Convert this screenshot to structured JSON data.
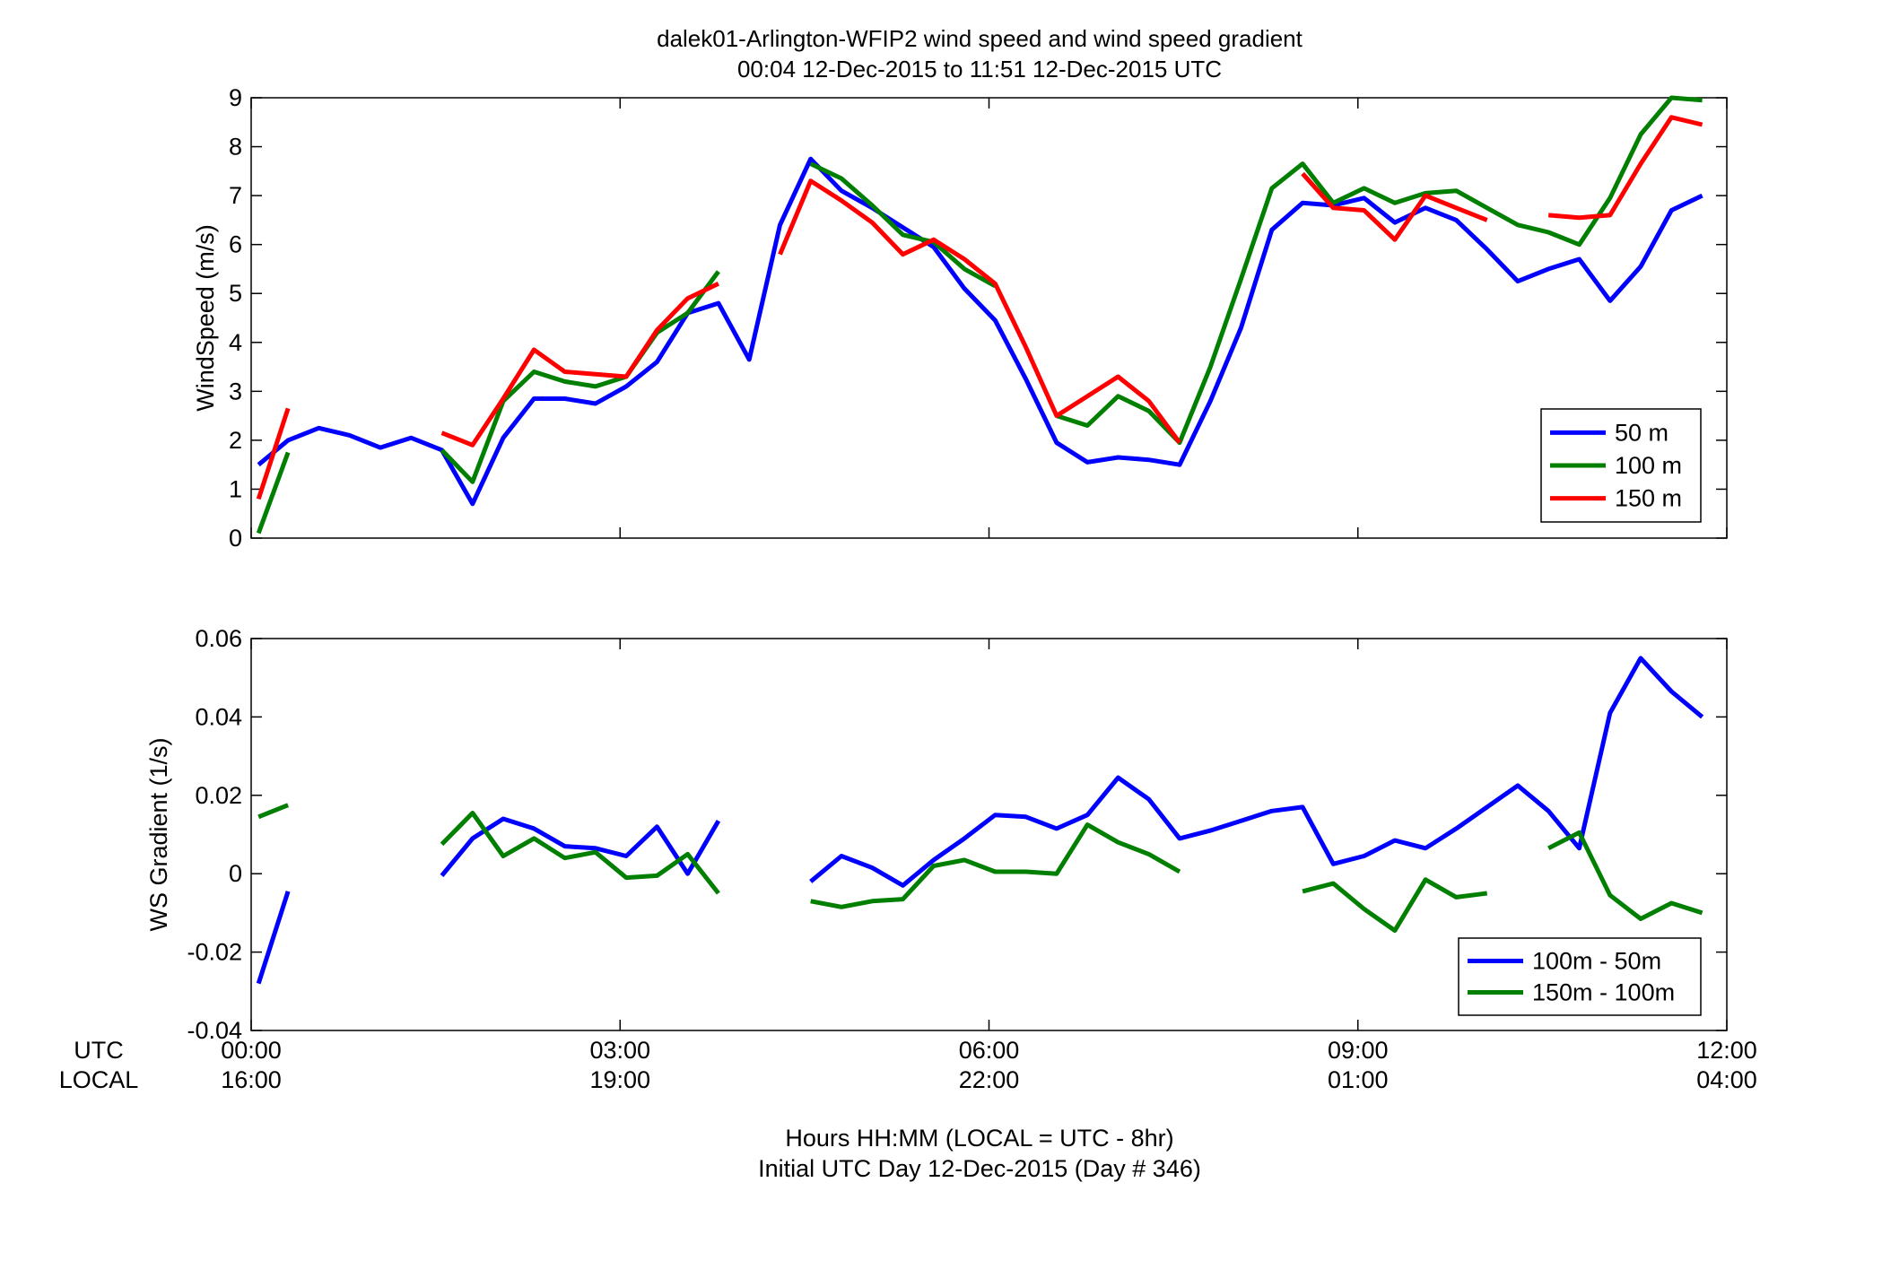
{
  "title_line1": "dalek01-Arlington-WFIP2  wind speed and wind speed gradient",
  "title_line2": "00:04 12-Dec-2015 to 11:51 12-Dec-2015  UTC",
  "row_labels": {
    "utc": "UTC",
    "local": "LOCAL"
  },
  "xticks_utc": [
    "00:00",
    "03:00",
    "06:00",
    "09:00",
    "12:00"
  ],
  "xticks_local": [
    "16:00",
    "19:00",
    "22:00",
    "01:00",
    "04:00"
  ],
  "xlabel_line1": "Hours HH:MM  (LOCAL = UTC - 8hr)",
  "xlabel_line2": "Initial UTC Day 12-Dec-2015 (Day # 346)",
  "colors": {
    "blue": "#0000ff",
    "green": "#007f00",
    "red": "#ff0000"
  },
  "chart_data": [
    {
      "type": "line",
      "name": "wind-speed",
      "title": "",
      "xlabel": "",
      "ylabel": "WindSpeed (m/s)",
      "xlim": [
        0,
        12
      ],
      "ylim": [
        0,
        9
      ],
      "yticks": [
        "0",
        "1",
        "2",
        "3",
        "4",
        "5",
        "6",
        "7",
        "8",
        "9"
      ],
      "grid": false,
      "legend": "bottom-right",
      "series": [
        {
          "name": "50 m",
          "color": "blue",
          "segments": [
            [
              [
                0.06,
                1.5
              ],
              [
                0.3,
                2.0
              ],
              [
                0.55,
                2.25
              ],
              [
                0.8,
                2.1
              ],
              [
                1.05,
                1.85
              ],
              [
                1.3,
                2.05
              ],
              [
                1.55,
                1.8
              ],
              [
                1.8,
                0.7
              ],
              [
                2.05,
                2.05
              ],
              [
                2.3,
                2.85
              ],
              [
                2.55,
                2.85
              ],
              [
                2.8,
                2.75
              ],
              [
                3.05,
                3.1
              ],
              [
                3.3,
                3.6
              ],
              [
                3.55,
                4.6
              ],
              [
                3.8,
                4.8
              ],
              [
                4.05,
                3.65
              ],
              [
                4.3,
                6.4
              ],
              [
                4.55,
                7.75
              ],
              [
                4.8,
                7.1
              ],
              [
                5.05,
                6.75
              ],
              [
                5.3,
                6.35
              ],
              [
                5.55,
                5.95
              ],
              [
                5.8,
                5.1
              ],
              [
                6.05,
                4.45
              ],
              [
                6.3,
                3.25
              ],
              [
                6.55,
                1.95
              ],
              [
                6.8,
                1.55
              ],
              [
                7.05,
                1.65
              ],
              [
                7.3,
                1.6
              ],
              [
                7.55,
                1.5
              ],
              [
                7.8,
                2.8
              ],
              [
                8.05,
                4.3
              ],
              [
                8.3,
                6.3
              ],
              [
                8.55,
                6.85
              ],
              [
                8.8,
                6.8
              ],
              [
                9.05,
                6.95
              ],
              [
                9.3,
                6.45
              ],
              [
                9.55,
                6.75
              ],
              [
                9.8,
                6.5
              ],
              [
                10.05,
                5.9
              ],
              [
                10.3,
                5.25
              ],
              [
                10.55,
                5.5
              ],
              [
                10.8,
                5.7
              ],
              [
                11.05,
                4.85
              ],
              [
                11.3,
                5.55
              ],
              [
                11.55,
                6.7
              ],
              [
                11.8,
                7.0
              ]
            ]
          ]
        },
        {
          "name": "100 m",
          "color": "green",
          "segments": [
            [
              [
                0.06,
                0.1
              ],
              [
                0.3,
                1.75
              ]
            ],
            [
              [
                1.55,
                1.8
              ],
              [
                1.8,
                1.15
              ],
              [
                2.05,
                2.8
              ],
              [
                2.3,
                3.4
              ],
              [
                2.55,
                3.2
              ],
              [
                2.8,
                3.1
              ],
              [
                3.05,
                3.3
              ],
              [
                3.3,
                4.2
              ],
              [
                3.55,
                4.6
              ],
              [
                3.8,
                5.45
              ]
            ],
            [
              [
                4.55,
                7.65
              ],
              [
                4.8,
                7.35
              ],
              [
                5.05,
                6.8
              ],
              [
                5.3,
                6.2
              ],
              [
                5.55,
                6.05
              ],
              [
                5.8,
                5.5
              ],
              [
                6.05,
                5.15
              ]
            ],
            [
              [
                6.55,
                2.5
              ],
              [
                6.8,
                2.3
              ],
              [
                7.05,
                2.9
              ],
              [
                7.3,
                2.6
              ],
              [
                7.55,
                1.95
              ],
              [
                7.8,
                3.5
              ],
              [
                8.05,
                5.3
              ],
              [
                8.3,
                7.15
              ],
              [
                8.55,
                7.65
              ],
              [
                8.8,
                6.85
              ],
              [
                9.05,
                7.15
              ],
              [
                9.3,
                6.85
              ],
              [
                9.55,
                7.05
              ],
              [
                9.8,
                7.1
              ],
              [
                10.05,
                6.75
              ],
              [
                10.3,
                6.4
              ],
              [
                10.55,
                6.25
              ],
              [
                10.8,
                6.0
              ],
              [
                11.05,
                6.95
              ],
              [
                11.3,
                8.25
              ],
              [
                11.55,
                9.0
              ],
              [
                11.8,
                8.95
              ]
            ]
          ]
        },
        {
          "name": "150 m",
          "color": "red",
          "segments": [
            [
              [
                0.06,
                0.8
              ],
              [
                0.3,
                2.65
              ]
            ],
            [
              [
                1.55,
                2.15
              ],
              [
                1.8,
                1.9
              ],
              [
                2.05,
                2.85
              ],
              [
                2.3,
                3.85
              ],
              [
                2.55,
                3.4
              ],
              [
                2.8,
                3.35
              ],
              [
                3.05,
                3.3
              ],
              [
                3.3,
                4.25
              ],
              [
                3.55,
                4.9
              ],
              [
                3.8,
                5.2
              ]
            ],
            [
              [
                4.3,
                5.8
              ],
              [
                4.55,
                7.3
              ],
              [
                4.8,
                6.9
              ],
              [
                5.05,
                6.45
              ],
              [
                5.3,
                5.8
              ],
              [
                5.55,
                6.1
              ],
              [
                5.8,
                5.7
              ],
              [
                6.05,
                5.2
              ],
              [
                6.3,
                3.9
              ],
              [
                6.55,
                2.5
              ],
              [
                6.8,
                2.9
              ],
              [
                7.05,
                3.3
              ],
              [
                7.3,
                2.8
              ],
              [
                7.55,
                1.95
              ]
            ],
            [
              [
                8.55,
                7.45
              ],
              [
                8.8,
                6.75
              ],
              [
                9.05,
                6.7
              ],
              [
                9.3,
                6.1
              ],
              [
                9.55,
                7.0
              ],
              [
                9.8,
                6.75
              ],
              [
                10.05,
                6.5
              ]
            ],
            [
              [
                10.55,
                6.6
              ],
              [
                10.8,
                6.55
              ],
              [
                11.05,
                6.6
              ],
              [
                11.3,
                7.65
              ],
              [
                11.55,
                8.6
              ],
              [
                11.8,
                8.45
              ]
            ]
          ]
        }
      ]
    },
    {
      "type": "line",
      "name": "ws-gradient",
      "title": "",
      "xlabel": "",
      "ylabel": "WS Gradient (1/s)",
      "xlim": [
        0,
        12
      ],
      "ylim": [
        -0.04,
        0.06
      ],
      "yticks": [
        "-0.04",
        "-0.02",
        "0",
        "0.02",
        "0.04",
        "0.06"
      ],
      "grid": false,
      "legend": "bottom-right",
      "series": [
        {
          "name": "100m - 50m",
          "color": "blue",
          "segments": [
            [
              [
                0.06,
                -0.028
              ],
              [
                0.3,
                -0.0045
              ]
            ],
            [
              [
                1.55,
                -0.0005
              ],
              [
                1.8,
                0.009
              ],
              [
                2.05,
                0.014
              ],
              [
                2.3,
                0.0115
              ],
              [
                2.55,
                0.007
              ],
              [
                2.8,
                0.0065
              ],
              [
                3.05,
                0.0045
              ],
              [
                3.3,
                0.012
              ],
              [
                3.55,
                0.0
              ],
              [
                3.8,
                0.0135
              ]
            ],
            [
              [
                4.55,
                -0.002
              ],
              [
                4.8,
                0.0045
              ],
              [
                5.05,
                0.0015
              ],
              [
                5.3,
                -0.003
              ],
              [
                5.55,
                0.0035
              ],
              [
                5.8,
                0.009
              ],
              [
                6.05,
                0.015
              ],
              [
                6.3,
                0.0145
              ],
              [
                6.55,
                0.0115
              ],
              [
                6.8,
                0.015
              ],
              [
                7.05,
                0.0245
              ],
              [
                7.3,
                0.019
              ],
              [
                7.55,
                0.009
              ],
              [
                7.8,
                0.011
              ],
              [
                8.05,
                0.0135
              ],
              [
                8.3,
                0.016
              ],
              [
                8.55,
                0.017
              ],
              [
                8.8,
                0.0025
              ],
              [
                9.05,
                0.0045
              ],
              [
                9.3,
                0.0085
              ],
              [
                9.55,
                0.0065
              ],
              [
                9.8,
                0.0115
              ],
              [
                10.05,
                0.017
              ],
              [
                10.3,
                0.0225
              ],
              [
                10.55,
                0.016
              ],
              [
                10.8,
                0.0065
              ],
              [
                11.05,
                0.041
              ],
              [
                11.3,
                0.055
              ],
              [
                11.55,
                0.0465
              ],
              [
                11.8,
                0.04
              ]
            ]
          ]
        },
        {
          "name": "150m - 100m",
          "color": "green",
          "segments": [
            [
              [
                0.06,
                0.0145
              ],
              [
                0.3,
                0.0175
              ]
            ],
            [
              [
                1.55,
                0.0075
              ],
              [
                1.8,
                0.0155
              ],
              [
                2.05,
                0.0045
              ],
              [
                2.3,
                0.009
              ],
              [
                2.55,
                0.004
              ],
              [
                2.8,
                0.0055
              ],
              [
                3.05,
                -0.001
              ],
              [
                3.3,
                -0.0005
              ],
              [
                3.55,
                0.005
              ],
              [
                3.8,
                -0.005
              ]
            ],
            [
              [
                4.55,
                -0.007
              ],
              [
                4.8,
                -0.0085
              ],
              [
                5.05,
                -0.007
              ],
              [
                5.3,
                -0.0065
              ],
              [
                5.55,
                0.002
              ],
              [
                5.8,
                0.0035
              ],
              [
                6.05,
                0.0005
              ],
              [
                6.3,
                0.0005
              ],
              [
                6.55,
                0.0
              ],
              [
                6.8,
                0.0125
              ],
              [
                7.05,
                0.008
              ],
              [
                7.3,
                0.005
              ],
              [
                7.55,
                0.0005
              ]
            ],
            [
              [
                8.55,
                -0.0045
              ],
              [
                8.8,
                -0.0025
              ],
              [
                9.05,
                -0.009
              ],
              [
                9.3,
                -0.0145
              ],
              [
                9.55,
                -0.0015
              ],
              [
                9.8,
                -0.006
              ],
              [
                10.05,
                -0.005
              ]
            ],
            [
              [
                10.55,
                0.0065
              ],
              [
                10.8,
                0.0105
              ],
              [
                11.05,
                -0.0055
              ],
              [
                11.3,
                -0.0115
              ],
              [
                11.55,
                -0.0075
              ],
              [
                11.8,
                -0.01
              ]
            ]
          ]
        }
      ]
    }
  ]
}
